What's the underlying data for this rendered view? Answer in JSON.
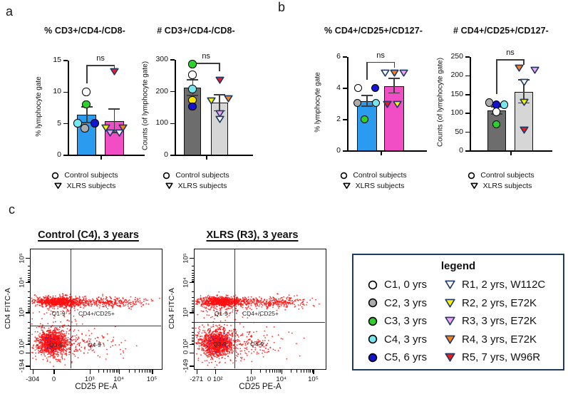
{
  "panel_labels": {
    "a": "a",
    "b": "b",
    "c": "c"
  },
  "subject_colors": {
    "C1": "#FFFFFF",
    "C2": "#ABABAB",
    "C3": "#2ED02E",
    "C4": "#76E6EF",
    "C5": "#1414CC",
    "R1": "#FFFFFF",
    "R2": "#FFF200",
    "R3": "#F2A5F2",
    "R4": "#F5821F",
    "R5": "#ED1C24"
  },
  "marker_outline": {
    "circle": "#000000",
    "triangle": "#1F3864"
  },
  "group_legend": {
    "control": "Control subjects",
    "xlrs": "XLRS subjects"
  },
  "chart_data": [
    {
      "type": "bar",
      "title": "% CD3+/CD4-/CD8-",
      "ylabel": "% lymphocyte gate",
      "ylim": [
        0,
        15
      ],
      "yticks": [
        0,
        5,
        10,
        15
      ],
      "significance": "ns",
      "bracket_y": 14.3,
      "bars": [
        {
          "group": "Control subjects",
          "marker": "circle",
          "color": "#2B9BF0",
          "mean": 6.4,
          "err_low": 5.2,
          "err_high": 7.7,
          "points": [
            {
              "subject": "C1",
              "value": 10.0,
              "dx": 0
            },
            {
              "subject": "C3",
              "value": 8.0,
              "dx": 0
            },
            {
              "subject": "C4",
              "value": 5.0,
              "dx": -12
            },
            {
              "subject": "C5",
              "value": 5.0,
              "dx": 12
            },
            {
              "subject": "C2",
              "value": 4.2,
              "dx": -2
            }
          ]
        },
        {
          "group": "XLRS subjects",
          "marker": "triangle",
          "color": "#F14EC6",
          "mean": 5.4,
          "err_low": 3.6,
          "err_high": 7.3,
          "points": [
            {
              "subject": "R5",
              "value": 13.2,
              "dx": 0
            },
            {
              "subject": "R2",
              "value": 4.3,
              "dx": -12
            },
            {
              "subject": "R4",
              "value": 4.3,
              "dx": 12
            },
            {
              "subject": "R3",
              "value": 3.5,
              "dx": -6
            },
            {
              "subject": "R1",
              "value": 3.5,
              "dx": 7
            }
          ]
        }
      ]
    },
    {
      "type": "bar",
      "title": "# CD3+/CD4-/CD8-",
      "ylabel": "Counts (of lymphocyte gate)",
      "ylim": [
        0,
        300
      ],
      "yticks": [
        0,
        100,
        200,
        300
      ],
      "significance": "ns",
      "bracket_y": 290,
      "bars": [
        {
          "group": "Control subjects",
          "marker": "circle",
          "color": "#6D6D6D",
          "mean": 212,
          "err_low": 188,
          "err_high": 237,
          "points": [
            {
              "subject": "C3",
              "value": 285,
              "dx": 0
            },
            {
              "subject": "C1",
              "value": 252,
              "dx": 0
            },
            {
              "subject": "C4",
              "value": 207,
              "dx": 0
            },
            {
              "subject": "C2",
              "value": 172,
              "dx": 0,
              "color": "#FFE400"
            },
            {
              "subject": "C5",
              "value": 152,
              "dx": 0
            }
          ]
        },
        {
          "group": "XLRS subjects",
          "marker": "triangle",
          "color": "#D6D6D6",
          "mean": 165,
          "err_low": 140,
          "err_high": 190,
          "points": [
            {
              "subject": "R5",
              "value": 237,
              "dx": 0
            },
            {
              "subject": "R2",
              "value": 172,
              "dx": -12
            },
            {
              "subject": "R4",
              "value": 178,
              "dx": 12
            },
            {
              "subject": "R3",
              "value": 130,
              "dx": 0
            },
            {
              "subject": "R1",
              "value": 112,
              "dx": 0
            }
          ]
        }
      ]
    },
    {
      "type": "bar",
      "title": "% CD4+/CD25+/CD127-",
      "ylabel": "% lymphocyte gate",
      "ylim": [
        0,
        6
      ],
      "yticks": [
        0,
        2,
        4,
        6
      ],
      "significance": "ns",
      "bracket_y": 5.7,
      "bars": [
        {
          "group": "Control subjects",
          "marker": "circle",
          "color": "#2B9BF0",
          "mean": 3.2,
          "err_low": 2.85,
          "err_high": 3.55,
          "points": [
            {
              "subject": "C1",
              "value": 4.0,
              "dx": -12
            },
            {
              "subject": "C5",
              "value": 4.0,
              "dx": 12
            },
            {
              "subject": "C2",
              "value": 3.05,
              "dx": -13
            },
            {
              "subject": "C4",
              "value": 3.05,
              "dx": 13
            },
            {
              "subject": "C3",
              "value": 2.0,
              "dx": -3
            }
          ]
        },
        {
          "group": "XLRS subjects",
          "marker": "triangle",
          "color": "#F14EC6",
          "mean": 4.15,
          "err_low": 3.7,
          "err_high": 4.65,
          "points": [
            {
              "subject": "R1",
              "value": 5.0,
              "dx": -13
            },
            {
              "subject": "R4",
              "value": 5.0,
              "dx": 0
            },
            {
              "subject": "R3",
              "value": 5.0,
              "dx": 13
            },
            {
              "subject": "R5",
              "value": 3.0,
              "dx": -10
            },
            {
              "subject": "R2",
              "value": 3.0,
              "dx": 4
            }
          ]
        }
      ]
    },
    {
      "type": "bar",
      "title": "# CD4+/CD25+/CD127-",
      "ylabel": "Counts (of lymphocyte gate)",
      "ylim": [
        0,
        250
      ],
      "yticks": [
        0,
        50,
        100,
        150,
        200,
        250
      ],
      "significance": "ns",
      "bracket_y": 244,
      "bars": [
        {
          "group": "Control subjects",
          "marker": "circle",
          "color": "#6D6D6D",
          "mean": 108,
          "err_low": 99,
          "err_high": 118,
          "points": [
            {
              "subject": "C2",
              "value": 128,
              "dx": -10
            },
            {
              "subject": "C5",
              "value": 122,
              "dx": 0
            },
            {
              "subject": "C4",
              "value": 122,
              "dx": 11
            },
            {
              "subject": "C1",
              "value": 103,
              "dx": 0
            },
            {
              "subject": "C3",
              "value": 70,
              "dx": 0
            }
          ]
        },
        {
          "group": "XLRS subjects",
          "marker": "triangle",
          "color": "#D6D6D6",
          "mean": 158,
          "err_low": 128,
          "err_high": 190,
          "points": [
            {
              "subject": "R4",
              "value": 220,
              "dx": -7
            },
            {
              "subject": "R3",
              "value": 215,
              "dx": 15
            },
            {
              "subject": "R1",
              "value": 182,
              "dx": 0
            },
            {
              "subject": "R2",
              "value": 130,
              "dx": 0
            },
            {
              "subject": "R5",
              "value": 55,
              "dx": 0
            }
          ]
        }
      ]
    },
    {
      "type": "scatter",
      "title": "Control (C4), 3 years",
      "xlabel": "CD25 PE-A",
      "ylabel": "CD4 FITC-A",
      "dot_color": "#FF1010",
      "xticks": [
        {
          "label": "-304",
          "pos": 0.02
        },
        {
          "label": "0",
          "pos": 0.18
        },
        {
          "label": "10³",
          "pos": 0.45
        },
        {
          "label": "10⁴",
          "pos": 0.67
        },
        {
          "label": "10⁵",
          "pos": 0.92
        }
      ],
      "yticks": [
        {
          "label": "10⁵",
          "pos": 0.08
        },
        {
          "label": "10⁴",
          "pos": 0.28
        },
        {
          "label": "10³",
          "pos": 0.53
        },
        {
          "label": "10²",
          "pos": 0.79
        },
        {
          "label": "0",
          "pos": 0.86
        },
        {
          "label": "-194",
          "pos": 0.97
        }
      ],
      "dividers": {
        "x": 0.3,
        "y": 0.63
      },
      "quadrant_labels": [
        {
          "text": "Q1-9",
          "x": 0.16,
          "y": 0.5
        },
        {
          "text": "CD4+/CD25+",
          "x": 0.36,
          "y": 0.5
        },
        {
          "text": "Q3-9",
          "x": 0.14,
          "y": 0.76
        },
        {
          "text": "Q4-9",
          "x": 0.43,
          "y": 0.76
        }
      ],
      "clusters": [
        {
          "n": 900,
          "cx": 0.22,
          "cy": 0.44,
          "sx": 0.095,
          "sy": 0.02
        },
        {
          "n": 330,
          "cx": 0.6,
          "cy": 0.445,
          "sx": 0.16,
          "sy": 0.022
        },
        {
          "n": 70,
          "cx": 0.22,
          "cy": 0.52,
          "sx": 0.1,
          "sy": 0.045
        },
        {
          "n": 1100,
          "cx": 0.165,
          "cy": 0.785,
          "sx": 0.055,
          "sy": 0.05
        },
        {
          "n": 260,
          "cx": 0.18,
          "cy": 0.78,
          "sx": 0.115,
          "sy": 0.095
        },
        {
          "n": 130,
          "cx": 0.45,
          "cy": 0.79,
          "sx": 0.14,
          "sy": 0.055
        },
        {
          "n": 18,
          "cx": 0.17,
          "cy": 0.78,
          "sx": 0.05,
          "sy": 0.05,
          "color": "#2222CC"
        }
      ]
    },
    {
      "type": "scatter",
      "title": "XLRS (R3), 3 years",
      "xlabel": "CD25 PE-A",
      "ylabel": "CD4 FITC-A",
      "dot_color": "#FF1010",
      "xticks": [
        {
          "label": "-271",
          "pos": 0.02
        },
        {
          "label": "0 10²",
          "pos": 0.16
        },
        {
          "label": "10³",
          "pos": 0.43
        },
        {
          "label": "10⁴",
          "pos": 0.66
        },
        {
          "label": "10⁵",
          "pos": 0.9
        }
      ],
      "yticks": [
        {
          "label": "10⁵",
          "pos": 0.08
        },
        {
          "label": "10⁴",
          "pos": 0.28
        },
        {
          "label": "10³",
          "pos": 0.53
        },
        {
          "label": "10²",
          "pos": 0.79
        },
        {
          "label": "0",
          "pos": 0.86
        },
        {
          "label": "-149",
          "pos": 0.97
        }
      ],
      "dividers": {
        "x": 0.3,
        "y": 0.6
      },
      "quadrant_labels": [
        {
          "text": "Q1-9",
          "x": 0.15,
          "y": 0.5
        },
        {
          "text": "CD4+/CD25+",
          "x": 0.36,
          "y": 0.5
        },
        {
          "text": "Q3-9",
          "x": 0.14,
          "y": 0.75
        },
        {
          "text": "Q4-9",
          "x": 0.42,
          "y": 0.75
        }
      ],
      "clusters": [
        {
          "n": 900,
          "cx": 0.21,
          "cy": 0.44,
          "sx": 0.09,
          "sy": 0.02
        },
        {
          "n": 330,
          "cx": 0.58,
          "cy": 0.445,
          "sx": 0.15,
          "sy": 0.024
        },
        {
          "n": 80,
          "cx": 0.22,
          "cy": 0.52,
          "sx": 0.1,
          "sy": 0.045
        },
        {
          "n": 1100,
          "cx": 0.17,
          "cy": 0.79,
          "sx": 0.058,
          "sy": 0.052
        },
        {
          "n": 280,
          "cx": 0.19,
          "cy": 0.78,
          "sx": 0.12,
          "sy": 0.095
        },
        {
          "n": 140,
          "cx": 0.46,
          "cy": 0.79,
          "sx": 0.15,
          "sy": 0.055
        },
        {
          "n": 18,
          "cx": 0.17,
          "cy": 0.79,
          "sx": 0.05,
          "sy": 0.05,
          "color": "#2222CC"
        }
      ]
    }
  ],
  "flow_legend": {
    "title": "legend",
    "border_color": "#1e3a5f",
    "controls": [
      {
        "id": "C1",
        "label": "C1, 0 yrs"
      },
      {
        "id": "C2",
        "label": "C2, 3 yrs"
      },
      {
        "id": "C3",
        "label": "C3, 3 yrs"
      },
      {
        "id": "C4",
        "label": "C4, 3 yrs"
      },
      {
        "id": "C5",
        "label": "C5, 6 yrs"
      }
    ],
    "xlrs": [
      {
        "id": "R1",
        "label": "R1, 2 yrs, W112C"
      },
      {
        "id": "R2",
        "label": "R2, 2 yrs, E72K"
      },
      {
        "id": "R3",
        "label": "R3, 3 yrs, E72K"
      },
      {
        "id": "R4",
        "label": "R4, 3 yrs, E72K"
      },
      {
        "id": "R5",
        "label": "R5, 7 yrs, W96R"
      }
    ]
  }
}
